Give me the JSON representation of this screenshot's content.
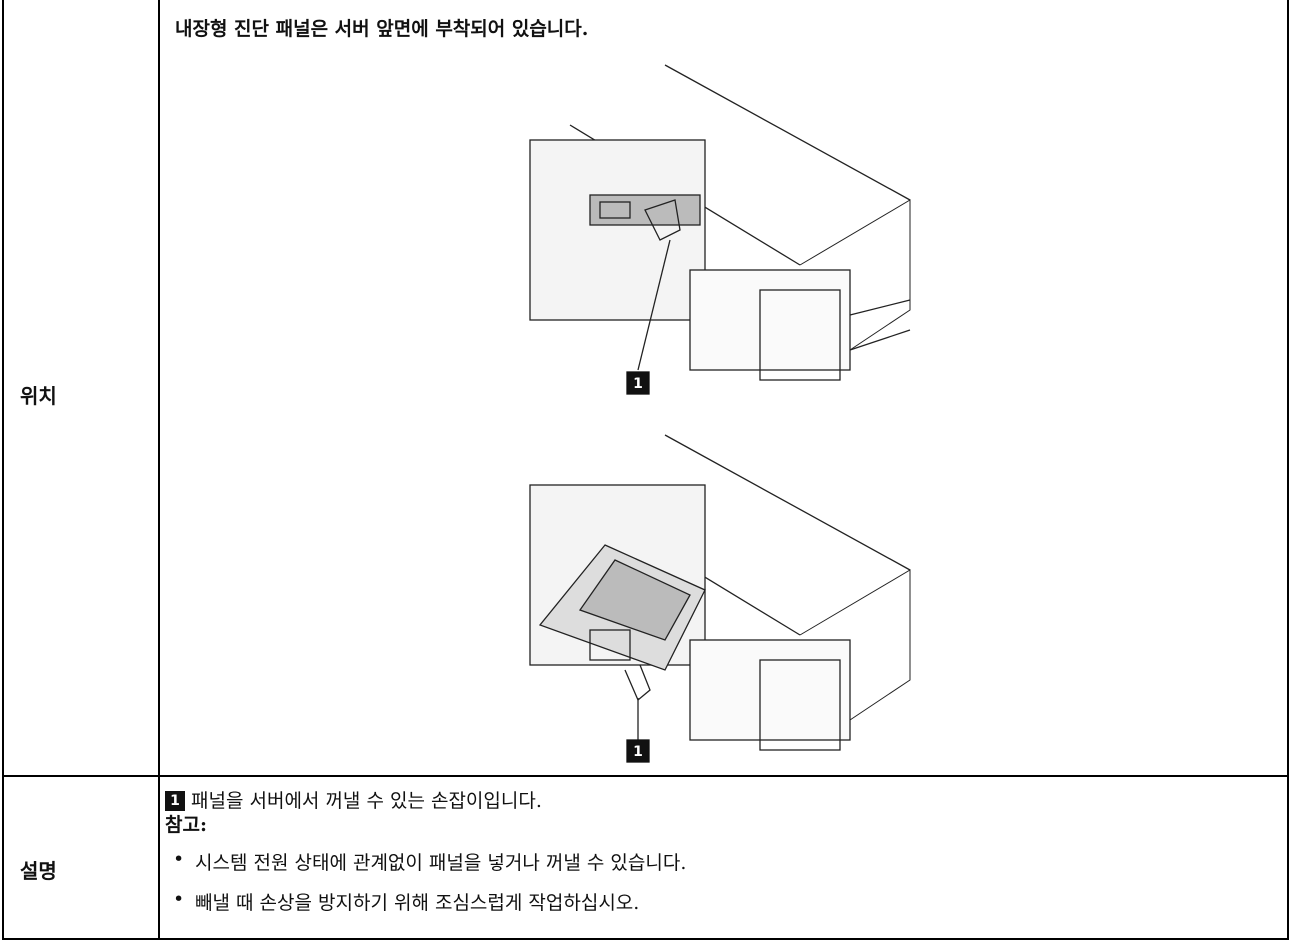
{
  "table": {
    "rows": [
      {
        "label": "위치",
        "text": "내장형 진단 패널은 서버 앞면에 부착되어 있습니다.",
        "figures": [
          {
            "callout": "1"
          },
          {
            "callout": "1"
          }
        ]
      },
      {
        "label": "설명",
        "callout": "1",
        "text": "패널을 서버에서 꺼낼 수 있는 손잡이입니다.",
        "note_label": "참고:",
        "notes": [
          "시스템 전원 상태에 관계없이 패널을 넣거나 꺼낼 수 있습니다.",
          "빼낼 때 손상을 방지하기 위해 조심스럽게 작업하십시오."
        ]
      }
    ]
  }
}
